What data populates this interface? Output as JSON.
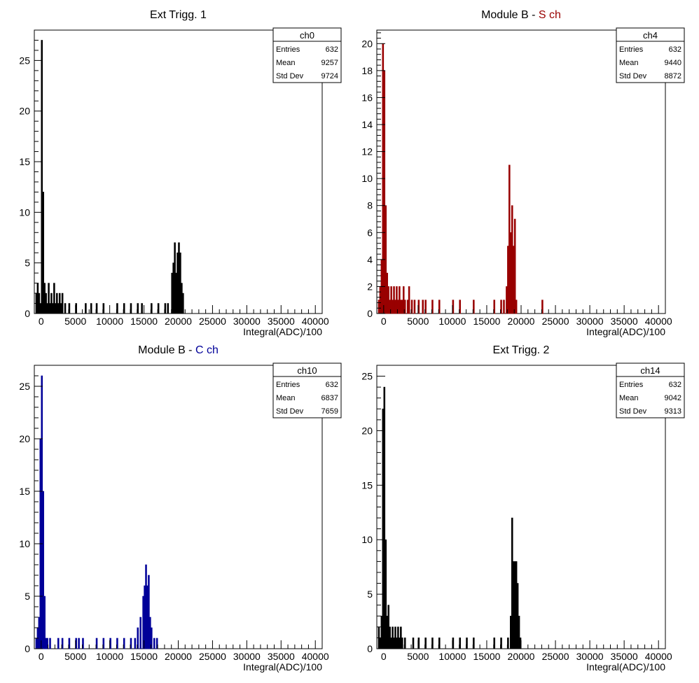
{
  "chart_data": [
    {
      "type": "histogram",
      "title": "Ext Trigg. 1",
      "title_parts": [
        {
          "text": "Ext Trigg. 1",
          "color": "#000000"
        }
      ],
      "xlabel": "Integral(ADC)/100",
      "ylabel": "",
      "xlim": [
        -1000,
        41000
      ],
      "ylim": [
        0,
        28
      ],
      "xticks": [
        "0",
        "5000",
        "10000",
        "15000",
        "20000",
        "25000",
        "30000",
        "35000",
        "40000"
      ],
      "yticks": [
        "0",
        "5",
        "10",
        "15",
        "20",
        "25"
      ],
      "color": "#000000",
      "stats": {
        "name": "ch0",
        "rows": [
          [
            "Entries",
            "632"
          ],
          [
            "Mean",
            "9257"
          ],
          [
            "Std Dev",
            "9724"
          ]
        ]
      },
      "bin_width": 200,
      "bins": [
        [
          -800,
          2
        ],
        [
          -600,
          3
        ],
        [
          -400,
          2
        ],
        [
          -200,
          1
        ],
        [
          0,
          27
        ],
        [
          200,
          12
        ],
        [
          400,
          3
        ],
        [
          600,
          2
        ],
        [
          800,
          1
        ],
        [
          1000,
          3
        ],
        [
          1200,
          1
        ],
        [
          1400,
          2
        ],
        [
          1600,
          1
        ],
        [
          1800,
          3
        ],
        [
          2000,
          1
        ],
        [
          2200,
          2
        ],
        [
          2400,
          1
        ],
        [
          2600,
          2
        ],
        [
          2800,
          1
        ],
        [
          3000,
          2
        ],
        [
          3400,
          1
        ],
        [
          4000,
          1
        ],
        [
          5000,
          1
        ],
        [
          6400,
          1
        ],
        [
          7200,
          1
        ],
        [
          8000,
          1
        ],
        [
          9000,
          1
        ],
        [
          11000,
          1
        ],
        [
          12000,
          1
        ],
        [
          13000,
          1
        ],
        [
          14000,
          1
        ],
        [
          14600,
          1
        ],
        [
          16000,
          1
        ],
        [
          17000,
          1
        ],
        [
          18000,
          1
        ],
        [
          18400,
          1
        ],
        [
          19000,
          4
        ],
        [
          19200,
          5
        ],
        [
          19400,
          7
        ],
        [
          19600,
          4
        ],
        [
          19800,
          6
        ],
        [
          20000,
          7
        ],
        [
          20200,
          6
        ],
        [
          20400,
          3
        ],
        [
          20600,
          2
        ]
      ]
    },
    {
      "type": "histogram",
      "title": "Module B - S ch",
      "title_parts": [
        {
          "text": "Module B - ",
          "color": "#000000"
        },
        {
          "text": "S ch",
          "color": "#990000"
        }
      ],
      "xlabel": "Integral(ADC)/100",
      "ylabel": "",
      "xlim": [
        -1000,
        41000
      ],
      "ylim": [
        0,
        21
      ],
      "xticks": [
        "0",
        "5000",
        "10000",
        "15000",
        "20000",
        "25000",
        "30000",
        "35000",
        "40000"
      ],
      "yticks": [
        "0",
        "2",
        "4",
        "6",
        "8",
        "10",
        "12",
        "14",
        "16",
        "18",
        "20"
      ],
      "color": "#990000",
      "stats": {
        "name": "ch4",
        "rows": [
          [
            "Entries",
            "632"
          ],
          [
            "Mean",
            "9440"
          ],
          [
            "Std Dev",
            "8872"
          ]
        ]
      },
      "bin_width": 200,
      "bins": [
        [
          -800,
          1
        ],
        [
          -600,
          2
        ],
        [
          -400,
          4
        ],
        [
          -200,
          20
        ],
        [
          0,
          18
        ],
        [
          200,
          8
        ],
        [
          400,
          3
        ],
        [
          600,
          2
        ],
        [
          800,
          1
        ],
        [
          1000,
          2
        ],
        [
          1200,
          1
        ],
        [
          1400,
          2
        ],
        [
          1600,
          1
        ],
        [
          1800,
          2
        ],
        [
          2000,
          1
        ],
        [
          2200,
          2
        ],
        [
          2400,
          1
        ],
        [
          2600,
          1
        ],
        [
          2800,
          2
        ],
        [
          3000,
          1
        ],
        [
          3400,
          1
        ],
        [
          3600,
          2
        ],
        [
          4000,
          1
        ],
        [
          4400,
          1
        ],
        [
          5000,
          1
        ],
        [
          5600,
          1
        ],
        [
          6000,
          1
        ],
        [
          7000,
          1
        ],
        [
          8000,
          1
        ],
        [
          10000,
          1
        ],
        [
          11000,
          1
        ],
        [
          13000,
          1
        ],
        [
          16000,
          1
        ],
        [
          17000,
          1
        ],
        [
          17400,
          1
        ],
        [
          17800,
          2
        ],
        [
          18000,
          5
        ],
        [
          18200,
          11
        ],
        [
          18400,
          6
        ],
        [
          18600,
          8
        ],
        [
          18800,
          5
        ],
        [
          19000,
          7
        ],
        [
          19200,
          1
        ],
        [
          23000,
          1
        ]
      ]
    },
    {
      "type": "histogram",
      "title": "Module B - C ch",
      "title_parts": [
        {
          "text": "Module B - ",
          "color": "#000000"
        },
        {
          "text": "C ch",
          "color": "#000099"
        }
      ],
      "xlabel": "Integral(ADC)/100",
      "ylabel": "",
      "xlim": [
        -1000,
        41000
      ],
      "ylim": [
        0,
        27
      ],
      "xticks": [
        "0",
        "5000",
        "10000",
        "15000",
        "20000",
        "25000",
        "30000",
        "35000",
        "40000"
      ],
      "yticks": [
        "0",
        "5",
        "10",
        "15",
        "20",
        "25"
      ],
      "color": "#000099",
      "stats": {
        "name": "ch10",
        "rows": [
          [
            "Entries",
            "632"
          ],
          [
            "Mean",
            "6837"
          ],
          [
            "Std Dev",
            "7659"
          ]
        ]
      },
      "bin_width": 200,
      "bins": [
        [
          -800,
          1
        ],
        [
          -600,
          2
        ],
        [
          -400,
          3
        ],
        [
          -200,
          20
        ],
        [
          0,
          26
        ],
        [
          200,
          15
        ],
        [
          400,
          5
        ],
        [
          600,
          1
        ],
        [
          800,
          1
        ],
        [
          1200,
          1
        ],
        [
          2400,
          1
        ],
        [
          3000,
          1
        ],
        [
          4000,
          1
        ],
        [
          5000,
          1
        ],
        [
          5400,
          1
        ],
        [
          6000,
          1
        ],
        [
          8000,
          1
        ],
        [
          9000,
          1
        ],
        [
          10000,
          1
        ],
        [
          11000,
          1
        ],
        [
          12000,
          1
        ],
        [
          13000,
          1
        ],
        [
          13600,
          1
        ],
        [
          14000,
          2
        ],
        [
          14400,
          3
        ],
        [
          14800,
          5
        ],
        [
          15000,
          6
        ],
        [
          15200,
          8
        ],
        [
          15400,
          6
        ],
        [
          15600,
          7
        ],
        [
          15800,
          3
        ],
        [
          16000,
          2
        ],
        [
          16400,
          1
        ],
        [
          16800,
          1
        ]
      ]
    },
    {
      "type": "histogram",
      "title": "Ext Trigg. 2",
      "title_parts": [
        {
          "text": "Ext Trigg. 2",
          "color": "#000000"
        }
      ],
      "xlabel": "Integral(ADC)/100",
      "ylabel": "",
      "xlim": [
        -1000,
        41000
      ],
      "ylim": [
        0,
        26
      ],
      "xticks": [
        "0",
        "5000",
        "10000",
        "15000",
        "20000",
        "25000",
        "30000",
        "35000",
        "40000"
      ],
      "yticks": [
        "0",
        "5",
        "10",
        "15",
        "20",
        "25"
      ],
      "color": "#000000",
      "stats": {
        "name": "ch14",
        "rows": [
          [
            "Entries",
            "632"
          ],
          [
            "Mean",
            "9042"
          ],
          [
            "Std Dev",
            "9313"
          ]
        ]
      },
      "bin_width": 200,
      "bins": [
        [
          -800,
          2
        ],
        [
          -600,
          1
        ],
        [
          -400,
          3
        ],
        [
          -200,
          22
        ],
        [
          0,
          24
        ],
        [
          200,
          10
        ],
        [
          400,
          3
        ],
        [
          600,
          4
        ],
        [
          800,
          2
        ],
        [
          1000,
          1
        ],
        [
          1200,
          2
        ],
        [
          1400,
          1
        ],
        [
          1600,
          2
        ],
        [
          1800,
          1
        ],
        [
          2000,
          2
        ],
        [
          2200,
          1
        ],
        [
          2400,
          2
        ],
        [
          2600,
          1
        ],
        [
          3000,
          1
        ],
        [
          4200,
          1
        ],
        [
          5000,
          1
        ],
        [
          6000,
          1
        ],
        [
          7000,
          1
        ],
        [
          8000,
          1
        ],
        [
          10000,
          1
        ],
        [
          11000,
          1
        ],
        [
          12000,
          1
        ],
        [
          13000,
          1
        ],
        [
          16000,
          1
        ],
        [
          17000,
          1
        ],
        [
          18000,
          1
        ],
        [
          18400,
          3
        ],
        [
          18600,
          12
        ],
        [
          18800,
          8
        ],
        [
          19000,
          8
        ],
        [
          19200,
          8
        ],
        [
          19400,
          6
        ],
        [
          19600,
          3
        ],
        [
          19800,
          1
        ]
      ]
    }
  ]
}
